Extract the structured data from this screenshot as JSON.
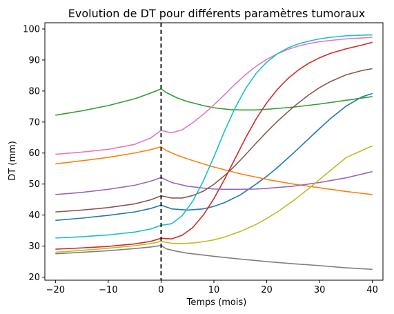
{
  "chart_data": {
    "type": "line",
    "title": "Evolution de DT pour différents paramètres tumoraux",
    "xlabel": "Temps (mois)",
    "ylabel": "DT (mm)",
    "xlim": [
      -22,
      42
    ],
    "ylim": [
      19,
      102
    ],
    "xticks": [
      -20,
      -10,
      0,
      10,
      20,
      30,
      40
    ],
    "yticks": [
      20,
      30,
      40,
      50,
      60,
      70,
      80,
      90,
      100
    ],
    "grid": false,
    "legend": "none",
    "reference_line": {
      "x": 0,
      "style": "dashed",
      "color": "#000000"
    },
    "series": [
      {
        "color": "#1f77b4",
        "x": [
          -20,
          -15,
          -10,
          -5,
          -2,
          0,
          2,
          5,
          8,
          10,
          12,
          15,
          18,
          20,
          22,
          25,
          28,
          30,
          32,
          35,
          38,
          40
        ],
        "y": [
          38.3,
          39.0,
          39.9,
          41.0,
          42.1,
          43.2,
          42.0,
          41.6,
          42.0,
          42.8,
          44.0,
          46.5,
          50.0,
          52.5,
          55.3,
          59.9,
          64.7,
          67.9,
          71.0,
          75.1,
          78.1,
          79.2
        ]
      },
      {
        "color": "#ff7f0e",
        "x": [
          -20,
          -15,
          -10,
          -5,
          -2,
          0,
          1,
          3,
          5,
          8,
          10,
          15,
          20,
          25,
          30,
          35,
          40
        ],
        "y": [
          56.5,
          57.5,
          58.6,
          60.0,
          61.1,
          62.0,
          60.8,
          59.3,
          58.1,
          56.5,
          55.5,
          53.3,
          51.5,
          50.0,
          48.8,
          47.6,
          46.6
        ]
      },
      {
        "color": "#2ca02c",
        "x": [
          -20,
          -15,
          -10,
          -5,
          -2,
          0,
          1,
          3,
          5,
          8,
          10,
          13,
          15,
          18,
          20,
          25,
          30,
          35,
          40
        ],
        "y": [
          72.2,
          73.6,
          75.3,
          77.5,
          79.3,
          80.7,
          79.5,
          77.8,
          76.6,
          75.3,
          74.6,
          74.0,
          73.9,
          73.9,
          74.1,
          74.8,
          75.8,
          77.0,
          78.2
        ]
      },
      {
        "color": "#d62728",
        "x": [
          -20,
          -15,
          -10,
          -5,
          -2,
          0,
          2,
          4,
          6,
          8,
          10,
          12,
          14,
          16,
          18,
          20,
          22,
          24,
          26,
          28,
          30,
          32,
          35,
          38,
          40
        ],
        "y": [
          29.0,
          29.4,
          29.9,
          30.7,
          31.5,
          32.5,
          32.3,
          33.5,
          36.0,
          40.0,
          45.3,
          51.5,
          58.2,
          64.9,
          71.0,
          76.2,
          80.5,
          84.0,
          86.8,
          89.0,
          90.7,
          92.1,
          93.6,
          94.8,
          95.7
        ]
      },
      {
        "color": "#9467bd",
        "x": [
          -20,
          -15,
          -10,
          -5,
          -2,
          0,
          2,
          5,
          8,
          10,
          12,
          15,
          18,
          20,
          25,
          30,
          35,
          40
        ],
        "y": [
          46.6,
          47.3,
          48.3,
          49.6,
          50.9,
          52.1,
          50.5,
          49.3,
          48.7,
          48.4,
          48.3,
          48.3,
          48.4,
          48.6,
          49.3,
          50.5,
          52.0,
          54.0
        ]
      },
      {
        "color": "#8c564b",
        "x": [
          -20,
          -15,
          -10,
          -5,
          -2,
          0,
          2,
          4,
          6,
          8,
          10,
          12,
          14,
          16,
          18,
          20,
          22,
          25,
          28,
          30,
          32,
          35,
          38,
          40
        ],
        "y": [
          41.0,
          41.6,
          42.4,
          43.6,
          44.9,
          46.2,
          45.5,
          45.5,
          46.3,
          47.7,
          49.9,
          52.7,
          55.9,
          59.5,
          63.2,
          66.8,
          70.2,
          74.8,
          78.8,
          81.1,
          83.0,
          85.2,
          86.6,
          87.2
        ]
      },
      {
        "color": "#e377c2",
        "x": [
          -20,
          -15,
          -10,
          -5,
          -2,
          0,
          2,
          4,
          6,
          8,
          10,
          12,
          14,
          16,
          18,
          20,
          22,
          24,
          26,
          28,
          30,
          32,
          35,
          38,
          40
        ],
        "y": [
          59.6,
          60.3,
          61.2,
          62.8,
          64.8,
          67.3,
          66.5,
          67.5,
          69.8,
          72.5,
          75.5,
          78.8,
          82.2,
          85.3,
          88.0,
          90.2,
          92.0,
          93.4,
          94.5,
          95.3,
          95.9,
          96.3,
          96.8,
          97.1,
          97.3
        ]
      },
      {
        "color": "#7f7f7f",
        "x": [
          -20,
          -15,
          -10,
          -5,
          -2,
          0,
          1,
          3,
          5,
          8,
          10,
          15,
          20,
          25,
          30,
          35,
          40
        ],
        "y": [
          27.5,
          28.0,
          28.5,
          29.2,
          29.7,
          30.2,
          29.1,
          28.3,
          27.7,
          27.1,
          26.7,
          25.8,
          25.0,
          24.3,
          23.7,
          23.0,
          22.5
        ]
      },
      {
        "color": "#bcbd22",
        "x": [
          -20,
          -15,
          -10,
          -5,
          -2,
          0,
          2,
          4,
          6,
          8,
          10,
          12,
          15,
          18,
          20,
          22,
          25,
          28,
          30,
          32,
          35,
          38,
          40
        ],
        "y": [
          28.0,
          28.6,
          29.3,
          30.1,
          30.8,
          31.5,
          30.9,
          30.8,
          31.0,
          31.4,
          32.0,
          32.9,
          34.7,
          37.0,
          38.9,
          41.0,
          44.6,
          48.6,
          51.5,
          54.3,
          58.5,
          60.8,
          62.3
        ]
      },
      {
        "color": "#17becf",
        "x": [
          -20,
          -15,
          -10,
          -5,
          -2,
          0,
          2,
          4,
          6,
          8,
          10,
          12,
          14,
          16,
          18,
          20,
          22,
          24,
          26,
          28,
          30,
          32,
          35,
          38,
          40
        ],
        "y": [
          32.6,
          33.0,
          33.6,
          34.5,
          35.5,
          36.7,
          37.2,
          39.8,
          44.5,
          51.0,
          58.8,
          67.0,
          74.5,
          80.8,
          85.7,
          89.3,
          92.0,
          93.9,
          95.2,
          96.1,
          96.8,
          97.3,
          97.8,
          98.0,
          98.1
        ]
      }
    ]
  }
}
